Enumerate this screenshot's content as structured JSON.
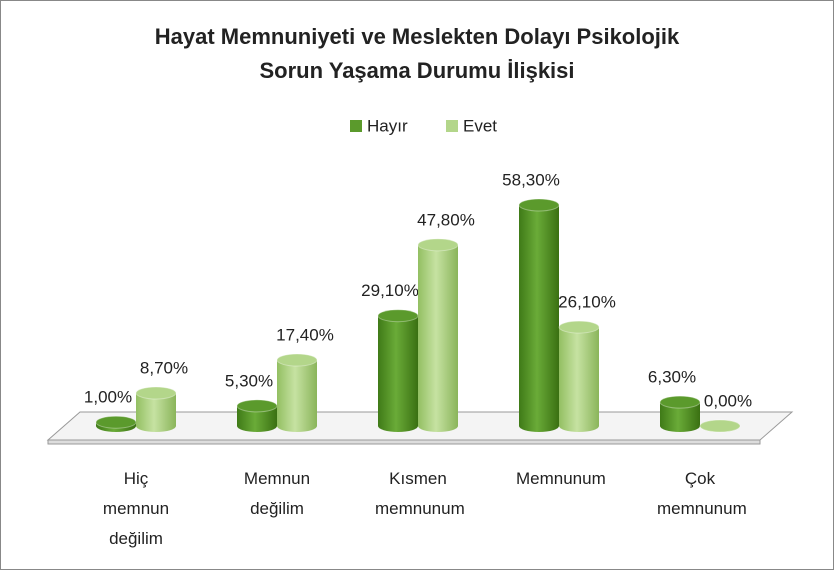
{
  "chart_data": {
    "type": "bar3d",
    "title": [
      "Hayat Memnuniyeti ve Meslekten Dolayı Psikolojik",
      "Sorun Yaşama Durumu İlişkisi"
    ],
    "categories": [
      "Hiç memnun değilim",
      "Memnun değilim",
      "Kısmen memnunum",
      "Memnunum",
      "Çok memnunum"
    ],
    "series": [
      {
        "name": "Hayır",
        "color": "#5b9a2c",
        "values": [
          1.0,
          5.3,
          29.1,
          58.3,
          6.3
        ],
        "value_labels": [
          "1,00%",
          "5,30%",
          "29,10%",
          "58,30%",
          "6,30%"
        ]
      },
      {
        "name": "Evet",
        "color": "#b3d68a",
        "values": [
          8.7,
          17.4,
          47.8,
          26.1,
          0.0
        ],
        "value_labels": [
          "8,70%",
          "17,40%",
          "47,80%",
          "26,10%",
          "0,00%"
        ]
      }
    ],
    "legend": "top"
  }
}
